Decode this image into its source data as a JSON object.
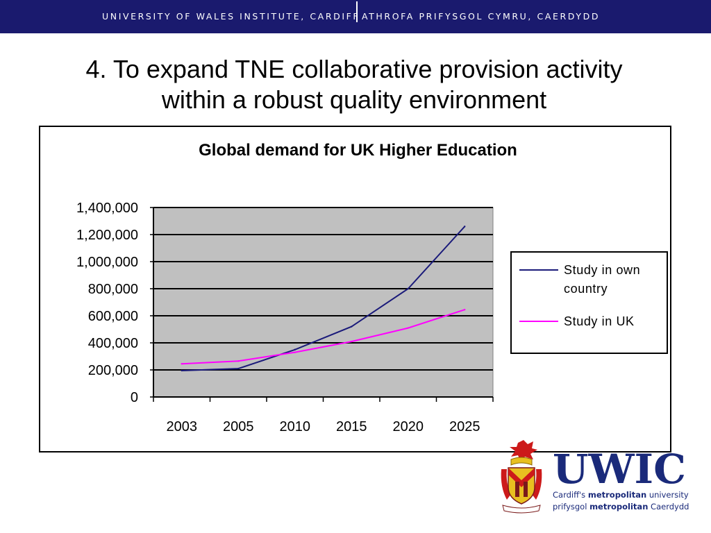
{
  "header": {
    "left_text": "UNIVERSITY OF WALES INSTITUTE, CARDIFF",
    "right_text": "ATHROFA PRIFYSGOL CYMRU, CAERDYDD"
  },
  "slide": {
    "title_line1": "4. To expand TNE collaborative provision activity",
    "title_line2": "within a robust quality environment"
  },
  "chart_data": {
    "type": "line",
    "title": "Global demand for UK Higher Education",
    "categories": [
      "2003",
      "2005",
      "2010",
      "2015",
      "2020",
      "2025"
    ],
    "ylim": [
      0,
      1400000
    ],
    "yticks": [
      "0",
      "200,000",
      "400,000",
      "600,000",
      "800,000",
      "1,000,000",
      "1,200,000",
      "1,400,000"
    ],
    "grid": true,
    "legend_position": "right",
    "series": [
      {
        "name": "Study in own country",
        "color": "#1a1a7a",
        "values": [
          195000,
          210000,
          350000,
          520000,
          800000,
          1260000
        ]
      },
      {
        "name": "Study in UK",
        "color": "#ff00ff",
        "values": [
          245000,
          265000,
          330000,
          410000,
          510000,
          645000
        ]
      }
    ],
    "plot_background": "#c0c0c0"
  },
  "logo": {
    "wordmark": "UWIC",
    "line1_prefix": "Cardiff's",
    "line1_bold": "metropolitan",
    "line1_suffix": "university",
    "line2_prefix": "prifysgol",
    "line2_bold": "metropolitan",
    "line2_suffix": "Caerdydd"
  }
}
